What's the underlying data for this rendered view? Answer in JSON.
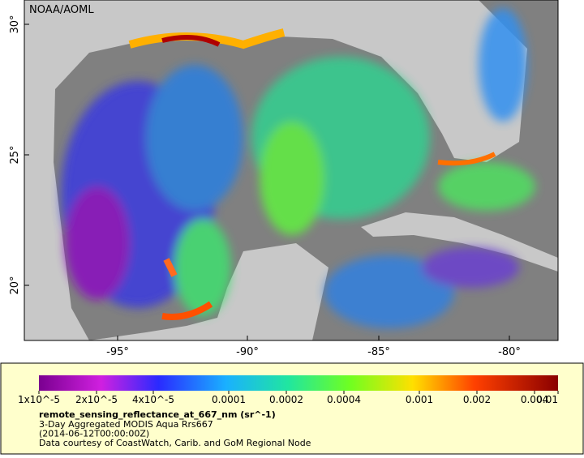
{
  "map": {
    "credit": "NOAA/AOML",
    "lat_labels": [
      "30°",
      "25°",
      "20°"
    ],
    "lon_labels": [
      "-95°",
      "-90°",
      "-85°",
      "-80°"
    ]
  },
  "legend": {
    "colorbar_labels": [
      "1x10^-5",
      "2x10^-5",
      "4x10^-5",
      "0.0001",
      "0.0002",
      "0.0004",
      "0.001",
      "0.002",
      "0.004",
      "0.01"
    ],
    "variable": "remote_sensing_reflectance_at_667_nm (sr^-1)",
    "lines": [
      "3-Day Aggregated MODIS Aqua Rrs667",
      "(2014-06-12T00:00:00Z)",
      "Data courtesy of CoastWatch, Carib. and GoM Regional Node"
    ]
  }
}
